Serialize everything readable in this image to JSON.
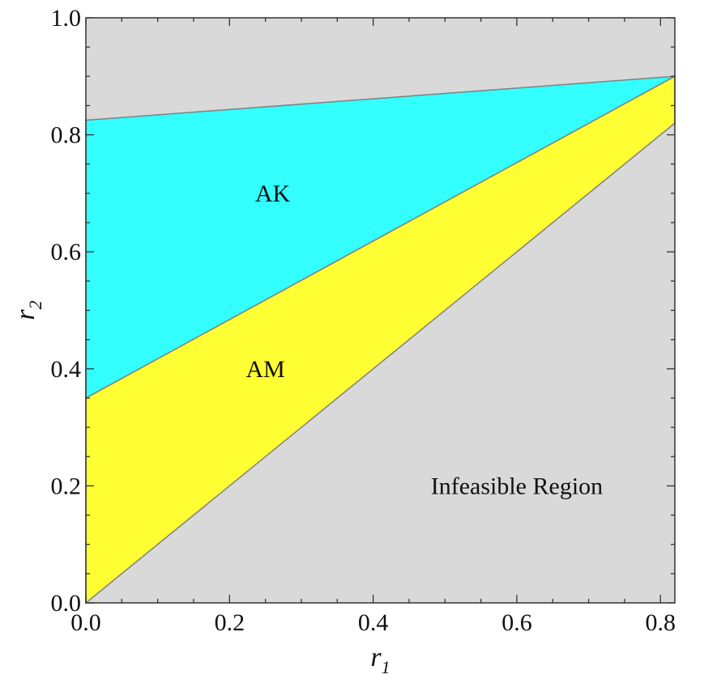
{
  "chart_data": {
    "type": "area",
    "x_axis": {
      "label": "r",
      "label_subscript": "1",
      "range": [
        0.0,
        0.82
      ],
      "ticks": [
        0.0,
        0.2,
        0.4,
        0.6,
        0.8
      ],
      "tick_labels": [
        "0.0",
        "0.2",
        "0.4",
        "0.6",
        "0.8"
      ]
    },
    "y_axis": {
      "label": "r",
      "label_subscript": "2",
      "range": [
        0.0,
        1.0
      ],
      "ticks": [
        0.0,
        0.2,
        0.4,
        0.6,
        0.8,
        1.0
      ],
      "tick_labels": [
        "0.0",
        "0.2",
        "0.4",
        "0.6",
        "0.8",
        "1.0"
      ]
    },
    "background_color": "#d9d9d9",
    "regions": [
      {
        "name": "AK",
        "color": "#33ffff",
        "vertices": [
          [
            0.0,
            0.825
          ],
          [
            0.82,
            0.9
          ],
          [
            0.0,
            0.35
          ]
        ],
        "label": "AK",
        "label_at": [
          0.26,
          0.7
        ]
      },
      {
        "name": "AM",
        "color": "#ffff33",
        "vertices": [
          [
            0.0,
            0.35
          ],
          [
            0.82,
            0.9
          ],
          [
            0.82,
            0.82
          ],
          [
            0.0,
            0.0
          ]
        ],
        "label": "AM",
        "label_at": [
          0.25,
          0.4
        ]
      },
      {
        "name": "Infeasible Region",
        "label": "Infeasible Region",
        "label_at": [
          0.6,
          0.2
        ]
      }
    ],
    "boundary_color": "#808080",
    "grid": false,
    "legend": "none"
  }
}
